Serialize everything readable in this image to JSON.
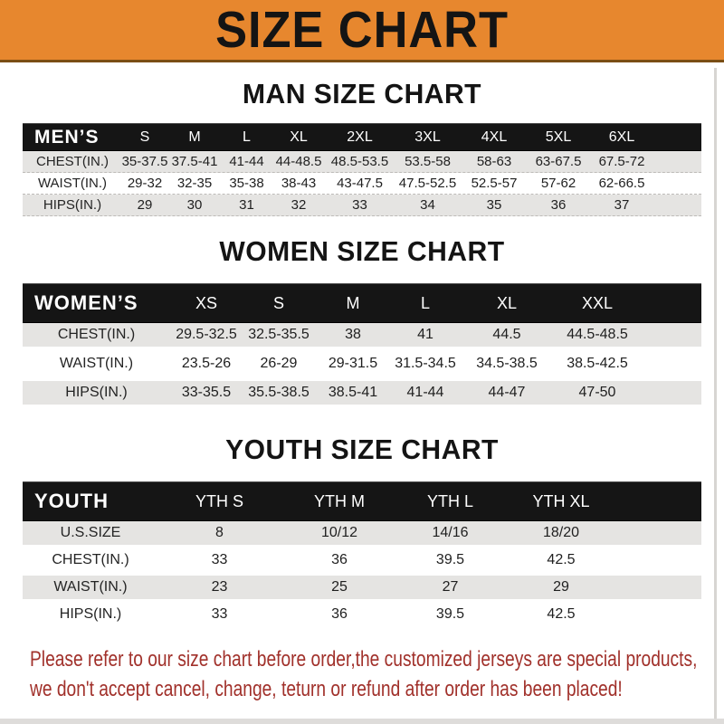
{
  "banner": {
    "title": "SIZE CHART"
  },
  "colors": {
    "banner_bg": "#E7872E",
    "banner_text": "#141414",
    "header_bar_bg": "#151515",
    "header_bar_text": "#FFFFFF",
    "row_stripe": "#E5E4E2",
    "row_alt": "#FFFFFF",
    "notice_text": "#A1312B"
  },
  "sections": [
    {
      "heading": "MAN SIZE CHART",
      "table": {
        "header_label": "MEN’S",
        "columns": [
          "S",
          "M",
          "L",
          "XL",
          "2XL",
          "3XL",
          "4XL",
          "5XL",
          "6XL"
        ],
        "rows": [
          {
            "label": "CHEST(IN.)",
            "values": [
              "35-37.5",
              "37.5-41",
              "41-44",
              "44-48.5",
              "48.5-53.5",
              "53.5-58",
              "58-63",
              "63-67.5",
              "67.5-72"
            ]
          },
          {
            "label": "WAIST(IN.)",
            "values": [
              "29-32",
              "32-35",
              "35-38",
              "38-43",
              "43-47.5",
              "47.5-52.5",
              "52.5-57",
              "57-62",
              "62-66.5"
            ]
          },
          {
            "label": "HIPS(IN.)",
            "values": [
              "29",
              "30",
              "31",
              "32",
              "33",
              "34",
              "35",
              "36",
              "37"
            ]
          }
        ]
      }
    },
    {
      "heading": "WOMEN SIZE CHART",
      "table": {
        "header_label": "WOMEN’S",
        "columns": [
          "XS",
          "S",
          "M",
          "L",
          "XL",
          "XXL"
        ],
        "rows": [
          {
            "label": "CHEST(IN.)",
            "values": [
              "29.5-32.5",
              "32.5-35.5",
              "38",
              "41",
              "44.5",
              "44.5-48.5"
            ]
          },
          {
            "label": "WAIST(IN.)",
            "values": [
              "23.5-26",
              "26-29",
              "29-31.5",
              "31.5-34.5",
              "34.5-38.5",
              "38.5-42.5"
            ]
          },
          {
            "label": "HIPS(IN.)",
            "values": [
              "33-35.5",
              "35.5-38.5",
              "38.5-41",
              "41-44",
              "44-47",
              "47-50"
            ]
          }
        ]
      }
    },
    {
      "heading": "YOUTH SIZE CHART",
      "table": {
        "header_label": "YOUTH",
        "columns": [
          "YTH S",
          "YTH M",
          "YTH L",
          "YTH XL"
        ],
        "rows": [
          {
            "label": "U.S.SIZE",
            "values": [
              "8",
              "10/12",
              "14/16",
              "18/20"
            ]
          },
          {
            "label": "CHEST(IN.)",
            "values": [
              "33",
              "36",
              "39.5",
              "42.5"
            ]
          },
          {
            "label": "WAIST(IN.)",
            "values": [
              "23",
              "25",
              "27",
              "29"
            ]
          },
          {
            "label": "HIPS(IN.)",
            "values": [
              "33",
              "36",
              "39.5",
              "42.5"
            ]
          }
        ]
      }
    }
  ],
  "footer": {
    "line1": "Please refer to our size chart before order,the customized jerseys are special products,",
    "line2": "we don't accept cancel, change, teturn or refund after order has been placed!"
  }
}
